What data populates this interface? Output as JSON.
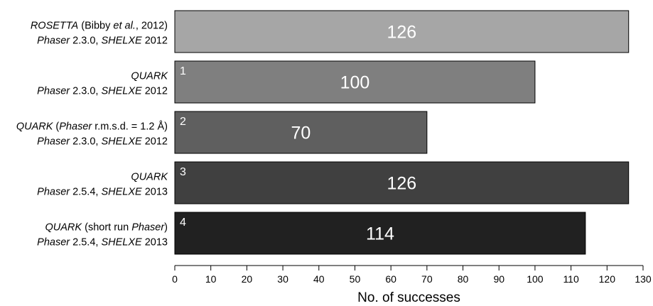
{
  "chart_data": {
    "type": "bar",
    "orientation": "horizontal",
    "title": "",
    "xlabel": "No. of successes",
    "ylabel": "",
    "xlim": [
      0,
      130
    ],
    "xticks": [
      0,
      10,
      20,
      30,
      40,
      50,
      60,
      70,
      80,
      90,
      100,
      110,
      120,
      130
    ],
    "grid": false,
    "legend": "none",
    "categories": [
      {
        "line1": [
          {
            "text": "ROSETTA",
            "italic": true
          },
          {
            "text": " (Bibby ",
            "italic": false
          },
          {
            "text": "et al.",
            "italic": true
          },
          {
            "text": ", 2012)",
            "italic": false
          }
        ],
        "line2": [
          {
            "text": "Phaser",
            "italic": true
          },
          {
            "text": " 2.3.0, ",
            "italic": false
          },
          {
            "text": "SHELXE",
            "italic": true
          },
          {
            "text": " 2012",
            "italic": false
          }
        ]
      },
      {
        "line1": [
          {
            "text": "QUARK",
            "italic": true
          }
        ],
        "line2": [
          {
            "text": "Phaser",
            "italic": true
          },
          {
            "text": " 2.3.0, ",
            "italic": false
          },
          {
            "text": "SHELXE",
            "italic": true
          },
          {
            "text": " 2012",
            "italic": false
          }
        ]
      },
      {
        "line1": [
          {
            "text": "QUARK",
            "italic": true
          },
          {
            "text": " (",
            "italic": false
          },
          {
            "text": "Phaser",
            "italic": true
          },
          {
            "text": " r.m.s.d. = 1.2 Å)",
            "italic": false
          }
        ],
        "line2": [
          {
            "text": "Phaser",
            "italic": true
          },
          {
            "text": " 2.3.0, ",
            "italic": false
          },
          {
            "text": "SHELXE",
            "italic": true
          },
          {
            "text": " 2012",
            "italic": false
          }
        ]
      },
      {
        "line1": [
          {
            "text": "QUARK",
            "italic": true
          }
        ],
        "line2": [
          {
            "text": "Phaser",
            "italic": true
          },
          {
            "text": " 2.5.4, ",
            "italic": false
          },
          {
            "text": "SHELXE",
            "italic": true
          },
          {
            "text": " 2013",
            "italic": false
          }
        ]
      },
      {
        "line1": [
          {
            "text": "QUARK",
            "italic": true
          },
          {
            "text": " (short run ",
            "italic": false
          },
          {
            "text": "Phaser",
            "italic": true
          },
          {
            "text": ")",
            "italic": false
          }
        ],
        "line2": [
          {
            "text": "Phaser",
            "italic": true
          },
          {
            "text": " 2.5.4, ",
            "italic": false
          },
          {
            "text": "SHELXE",
            "italic": true
          },
          {
            "text": " 2013",
            "italic": false
          }
        ]
      }
    ],
    "values": [
      126,
      100,
      70,
      126,
      114
    ],
    "bar_numbers": [
      "",
      "1",
      "2",
      "3",
      "4"
    ],
    "colors": [
      "#a6a6a6",
      "#7f7f7f",
      "#5f5f5f",
      "#404040",
      "#212121"
    ]
  }
}
